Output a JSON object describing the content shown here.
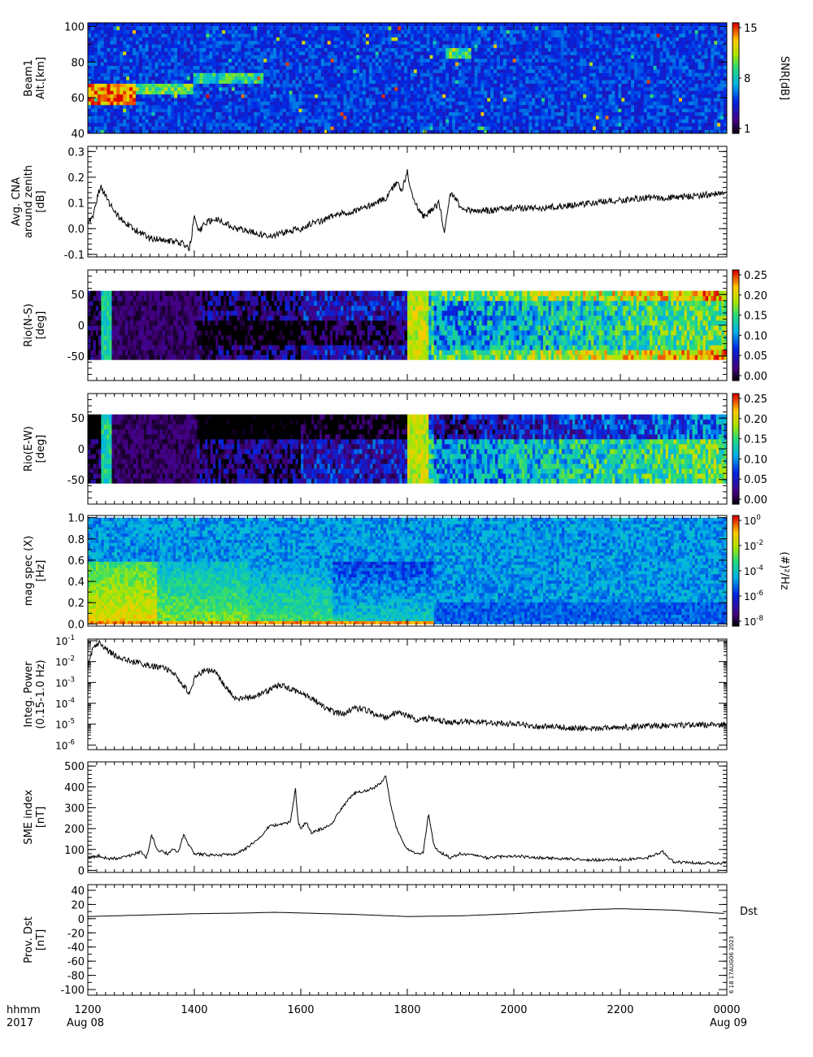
{
  "chart_data": [
    {
      "type": "heatmap",
      "panel": "beam1-snr",
      "ylabel": "Beam1\nAlt.[km]",
      "yticks": [
        40,
        60,
        80,
        100
      ],
      "ylim": [
        40,
        102
      ],
      "colorbar": {
        "label": "SNR[dB]",
        "ticks": [
          "15",
          "8",
          "1"
        ],
        "range": [
          1,
          15
        ]
      },
      "features": [
        {
          "t0": 12.0,
          "t1": 12.9,
          "alt0": 56,
          "alt1": 68,
          "level": 0.75
        },
        {
          "t0": 12.9,
          "t1": 14.0,
          "alt0": 63,
          "alt1": 67,
          "level": 0.5
        },
        {
          "t0": 14.0,
          "t1": 15.3,
          "alt0": 68,
          "alt1": 73,
          "level": 0.4
        },
        {
          "t0": 18.7,
          "t1": 19.2,
          "alt0": 82,
          "alt1": 87,
          "level": 0.45
        }
      ]
    },
    {
      "type": "line",
      "panel": "avg-cna",
      "ylabel": "Avg. CNA\naround zenith\n[dB]",
      "yticks": [
        "-0.1",
        "0.0",
        "0.1",
        "0.2",
        "0.3"
      ],
      "ylim": [
        -0.11,
        0.32
      ],
      "x": [
        12.0,
        12.1,
        12.2,
        12.25,
        12.4,
        12.6,
        12.8,
        13.0,
        13.2,
        13.4,
        13.6,
        13.8,
        13.9,
        13.95,
        14.0,
        14.05,
        14.1,
        14.2,
        14.4,
        14.6,
        14.8,
        15.0,
        15.2,
        15.4,
        15.6,
        15.8,
        16.0,
        16.2,
        16.4,
        16.6,
        16.8,
        17.0,
        17.2,
        17.4,
        17.6,
        17.8,
        17.9,
        18.0,
        18.1,
        18.15,
        18.2,
        18.3,
        18.4,
        18.5,
        18.6,
        18.7,
        18.8,
        18.9,
        19.0,
        19.2,
        19.4,
        19.6,
        19.8,
        20.0,
        20.5,
        21.0,
        21.5,
        22.0,
        22.5,
        23.0,
        23.5,
        24.0
      ],
      "values": [
        0.02,
        0.05,
        0.14,
        0.16,
        0.1,
        0.04,
        0.01,
        -0.02,
        -0.04,
        -0.04,
        -0.05,
        -0.06,
        -0.08,
        -0.03,
        0.06,
        0.0,
        -0.01,
        0.02,
        0.04,
        0.02,
        0.0,
        -0.01,
        -0.02,
        -0.03,
        -0.02,
        -0.01,
        0.0,
        0.02,
        0.03,
        0.05,
        0.06,
        0.07,
        0.08,
        0.1,
        0.12,
        0.18,
        0.15,
        0.22,
        0.12,
        0.1,
        0.08,
        0.05,
        0.06,
        0.08,
        0.1,
        -0.02,
        0.14,
        0.12,
        0.08,
        0.07,
        0.07,
        0.07,
        0.08,
        0.08,
        0.08,
        0.09,
        0.1,
        0.11,
        0.12,
        0.12,
        0.13,
        0.14
      ]
    },
    {
      "type": "heatmap",
      "panel": "riometer-ns",
      "ylabel": "Rio(N-S)\n[deg]",
      "yticks": [
        "-50",
        "0",
        "50"
      ],
      "ylim": [
        -90,
        90
      ],
      "data_range": [
        -56,
        56
      ],
      "colorbar": {
        "ticks": [
          "0.25",
          "0.20",
          "0.15",
          "0.10",
          "0.05",
          "0.00"
        ],
        "range": [
          0,
          0.28
        ]
      }
    },
    {
      "type": "heatmap",
      "panel": "riometer-ew",
      "ylabel": "Rio(E-W)\n[deg]",
      "yticks": [
        "-50",
        "0",
        "50"
      ],
      "ylim": [
        -90,
        90
      ],
      "data_range": [
        -56,
        56
      ],
      "colorbar": {
        "ticks": [
          "0.25",
          "0.20",
          "0.15",
          "0.10",
          "0.05",
          "0.00"
        ],
        "range": [
          0,
          0.28
        ]
      }
    },
    {
      "type": "heatmap",
      "panel": "mag-spectrogram",
      "ylabel": "mag spec (X)\n[Hz]",
      "yticks": [
        "0.0",
        "0.2",
        "0.4",
        "0.6",
        "0.8",
        "1.0"
      ],
      "ylim": [
        -0.02,
        1.02
      ],
      "colorbar": {
        "label": "(#)²/Hz",
        "ticks": [
          {
            "base": "10",
            "exp": "0"
          },
          {
            "base": "10",
            "exp": "-2"
          },
          {
            "base": "10",
            "exp": "-4"
          },
          {
            "base": "10",
            "exp": "-6"
          },
          {
            "base": "10",
            "exp": "-8"
          }
        ],
        "range": [
          -9,
          0
        ]
      }
    },
    {
      "type": "line",
      "panel": "integrated-power",
      "ylabel": "Integ. Power\n(0.15-1.0 Hz)",
      "yscale": "log",
      "yticks": [
        {
          "base": "10",
          "exp": "-1"
        },
        {
          "base": "10",
          "exp": "-2"
        },
        {
          "base": "10",
          "exp": "-3"
        },
        {
          "base": "10",
          "exp": "-4"
        },
        {
          "base": "10",
          "exp": "-5"
        },
        {
          "base": "10",
          "exp": "-6"
        }
      ],
      "ylim": [
        6e-07,
        0.12
      ],
      "x": [
        12.0,
        12.1,
        12.2,
        12.4,
        12.6,
        12.8,
        13.0,
        13.2,
        13.4,
        13.6,
        13.8,
        13.9,
        14.0,
        14.2,
        14.4,
        14.6,
        14.8,
        15.0,
        15.2,
        15.4,
        15.6,
        15.8,
        16.0,
        16.2,
        16.4,
        16.6,
        16.8,
        17.0,
        17.2,
        17.4,
        17.6,
        17.8,
        18.0,
        18.2,
        18.4,
        18.6,
        18.8,
        19.0,
        19.5,
        20.0,
        20.5,
        21.0,
        21.5,
        22.0,
        22.5,
        23.0,
        23.5,
        24.0
      ],
      "values": [
        0.005,
        0.05,
        0.08,
        0.03,
        0.015,
        0.01,
        0.008,
        0.006,
        0.005,
        0.003,
        0.0007,
        0.0003,
        0.0015,
        0.004,
        0.003,
        0.0005,
        0.00015,
        0.00018,
        0.00025,
        0.0004,
        0.0008,
        0.0005,
        0.0003,
        0.00018,
        8e-05,
        4e-05,
        3e-05,
        6e-05,
        5e-05,
        3e-05,
        2e-05,
        4e-05,
        2.5e-05,
        1.5e-05,
        2e-05,
        1.5e-05,
        1.2e-05,
        1.3e-05,
        1.2e-05,
        1e-05,
        8e-06,
        7e-06,
        6e-06,
        7e-06,
        8e-06,
        9e-06,
        9e-06,
        1e-05
      ]
    },
    {
      "type": "line",
      "panel": "sme-index",
      "ylabel": "SME index\n[nT]",
      "yticks": [
        "0",
        "100",
        "200",
        "300",
        "400",
        "500"
      ],
      "ylim": [
        -10,
        520
      ],
      "x": [
        12.0,
        12.2,
        12.4,
        12.6,
        12.8,
        13.0,
        13.1,
        13.2,
        13.3,
        13.4,
        13.5,
        13.6,
        13.7,
        13.8,
        13.9,
        14.0,
        14.2,
        14.4,
        14.6,
        14.8,
        15.0,
        15.2,
        15.4,
        15.6,
        15.8,
        15.9,
        15.95,
        16.0,
        16.1,
        16.2,
        16.4,
        16.6,
        16.8,
        17.0,
        17.2,
        17.4,
        17.5,
        17.6,
        17.7,
        17.8,
        18.0,
        18.2,
        18.3,
        18.4,
        18.5,
        18.6,
        18.8,
        19.0,
        19.5,
        20.0,
        20.5,
        21.0,
        21.5,
        22.0,
        22.5,
        22.8,
        23.0,
        23.5,
        24.0
      ],
      "values": [
        60,
        70,
        55,
        60,
        70,
        90,
        60,
        170,
        100,
        90,
        80,
        100,
        90,
        170,
        120,
        80,
        75,
        70,
        75,
        80,
        110,
        150,
        210,
        220,
        230,
        390,
        230,
        200,
        230,
        180,
        200,
        230,
        310,
        370,
        380,
        400,
        420,
        450,
        300,
        200,
        100,
        80,
        90,
        270,
        120,
        90,
        60,
        80,
        60,
        70,
        60,
        55,
        50,
        50,
        60,
        90,
        40,
        35,
        35
      ]
    },
    {
      "type": "line",
      "panel": "provisional-dst",
      "ylabel": "Prov. Dst\n[nT]",
      "yticks": [
        "-100",
        "-80",
        "-60",
        "-40",
        "-20",
        "0",
        "20",
        "40"
      ],
      "ylim": [
        -108,
        48
      ],
      "series": [
        {
          "name": "Dst",
          "x": [
            12.0,
            13.0,
            14.0,
            15.0,
            15.5,
            16.0,
            17.0,
            18.0,
            19.0,
            20.0,
            21.0,
            21.5,
            22.0,
            23.0,
            24.0
          ],
          "values": [
            3,
            5,
            7,
            8,
            9,
            8,
            6,
            3,
            4,
            7,
            11,
            13,
            14,
            12,
            7
          ]
        }
      ]
    }
  ],
  "x_axis": {
    "label_top": "hhmm",
    "label_bottom": "2017",
    "ticks": [
      "1200",
      "1400",
      "1600",
      "1800",
      "2000",
      "2200",
      "0000"
    ],
    "dates": [
      "Aug 08",
      "Aug 09"
    ],
    "range": [
      12,
      24
    ]
  },
  "stamp": "6 18 17AUG06 2023",
  "colors": {
    "line": "#000000",
    "panel_bg": "#ffffff",
    "axis": "#000000"
  }
}
